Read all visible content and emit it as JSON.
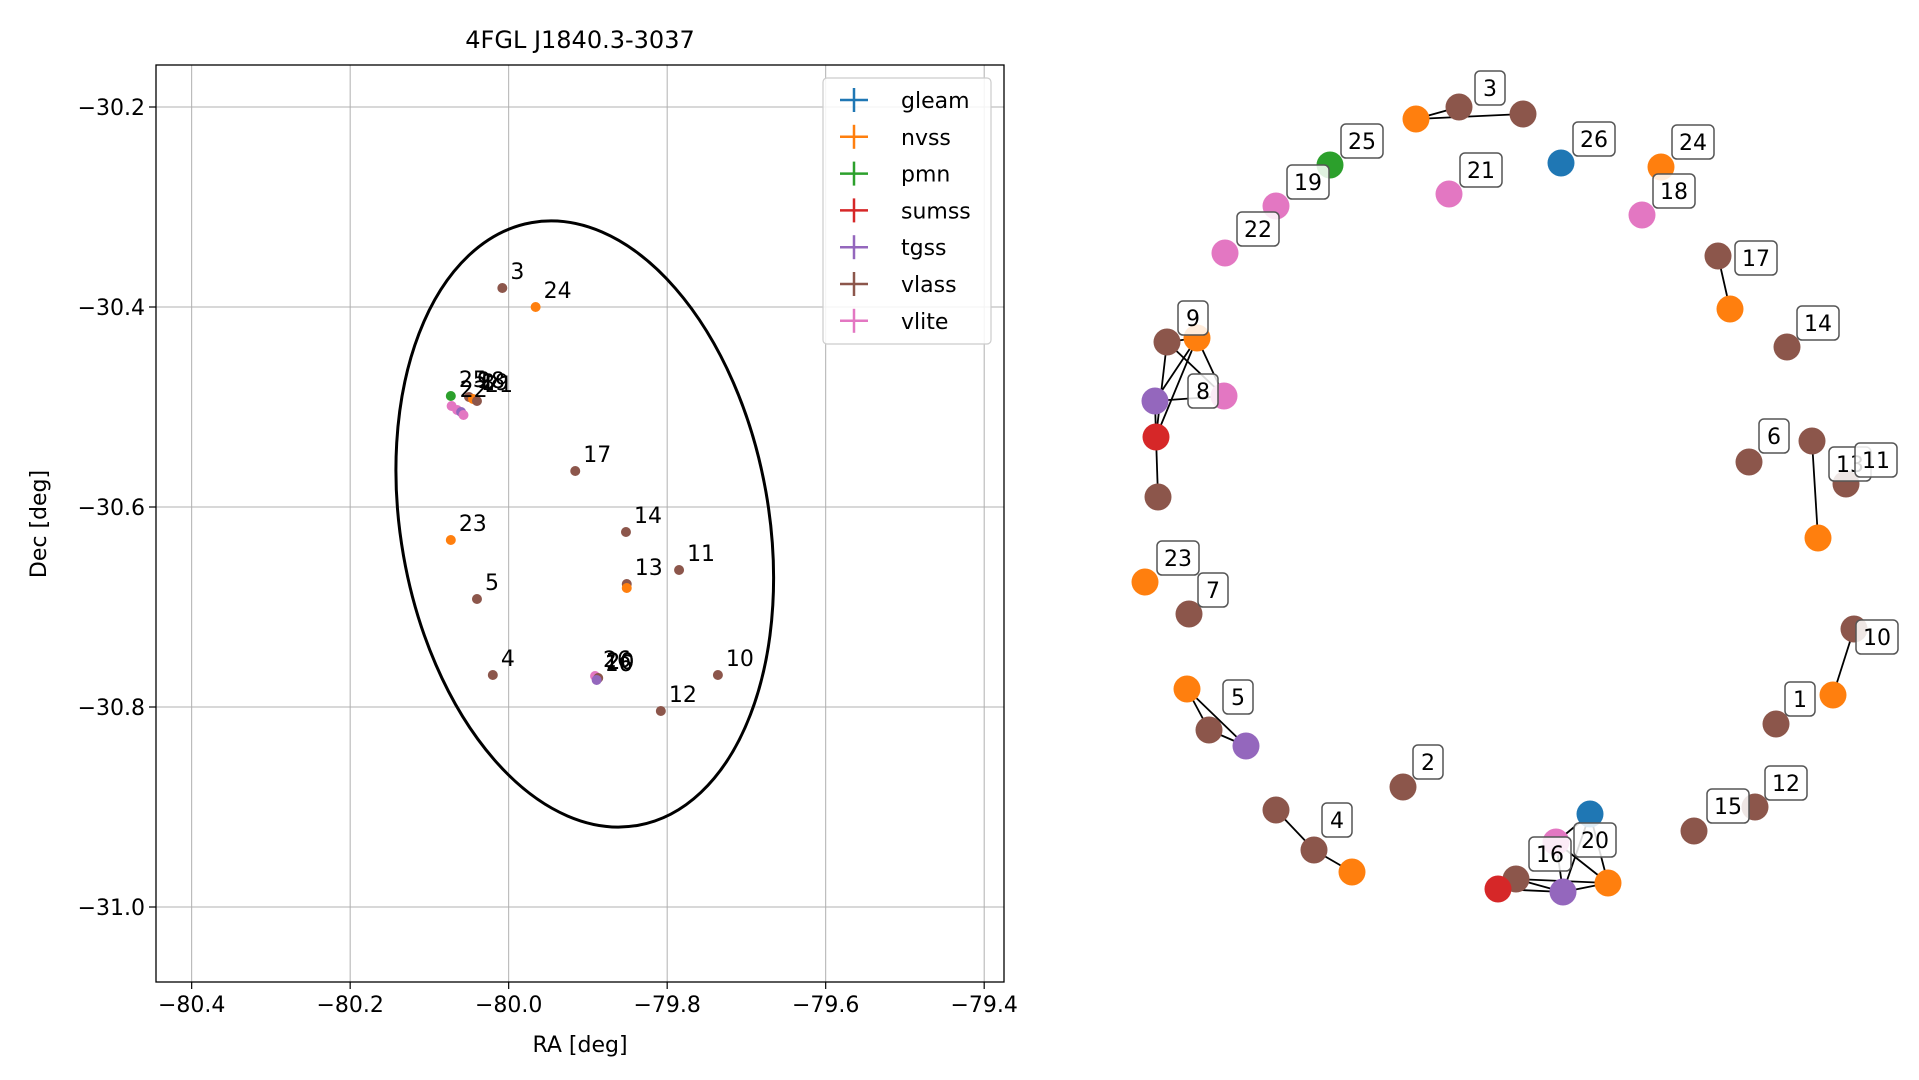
{
  "colors": {
    "gleam": "#1f77b4",
    "nvss": "#ff7f0e",
    "pmn": "#2ca02c",
    "sumss": "#d62728",
    "tgss": "#9467bd",
    "vlass": "#8c564b",
    "vlite": "#e377c2"
  },
  "chart_data": [
    {
      "type": "scatter",
      "title": "4FGL J1840.3-3037",
      "xlabel": "RA [deg]",
      "ylabel": "Dec [deg]",
      "xlim": [
        -80.445,
        -79.375
      ],
      "ylim": [
        -31.075,
        -30.158
      ],
      "x_ticks": [
        -80.4,
        -80.2,
        -80.0,
        -79.8,
        -79.6,
        -79.4
      ],
      "x_tick_labels": [
        "−80.4",
        "−80.2",
        "−80.0",
        "−79.8",
        "−79.6",
        "−79.4"
      ],
      "y_ticks": [
        -30.2,
        -30.4,
        -30.6,
        -30.8,
        -31.0
      ],
      "y_tick_labels": [
        "−30.2",
        "−30.4",
        "−30.6",
        "−30.8",
        "−31.0"
      ],
      "grid": true,
      "legend_position": "top-right",
      "legend": [
        "gleam",
        "nvss",
        "pmn",
        "sumss",
        "tgss",
        "vlass",
        "vlite"
      ],
      "ellipse": {
        "center": [
          -79.904,
          -30.617
        ],
        "semi_major_deg": 0.306,
        "semi_minor_deg": 0.184,
        "tilt_deg": 10
      },
      "points": [
        {
          "label": "3",
          "survey": "vlass",
          "ra": -80.008,
          "dec": -30.381
        },
        {
          "label": "24",
          "survey": "nvss",
          "ra": -79.966,
          "dec": -30.4
        },
        {
          "label": "25",
          "survey": "pmn",
          "ra": -80.073,
          "dec": -30.489
        },
        {
          "label": "9",
          "survey": "vlass",
          "ra": -80.05,
          "dec": -30.49
        },
        {
          "label": "8",
          "survey": "nvss",
          "ra": -80.045,
          "dec": -30.492
        },
        {
          "label": "21",
          "survey": "vlass",
          "ra": -80.04,
          "dec": -30.494
        },
        {
          "label": "22",
          "survey": "vlite",
          "ra": -80.072,
          "dec": -30.499
        },
        {
          "label": "",
          "survey": "vlite",
          "ra": -80.065,
          "dec": -30.503
        },
        {
          "label": "",
          "survey": "tgss",
          "ra": -80.06,
          "dec": -30.505
        },
        {
          "label": "",
          "survey": "vlite",
          "ra": -80.057,
          "dec": -30.508
        },
        {
          "label": "17",
          "survey": "vlass",
          "ra": -79.916,
          "dec": -30.564
        },
        {
          "label": "23",
          "survey": "nvss",
          "ra": -80.073,
          "dec": -30.633
        },
        {
          "label": "14",
          "survey": "vlass",
          "ra": -79.852,
          "dec": -30.625
        },
        {
          "label": "11",
          "survey": "vlass",
          "ra": -79.785,
          "dec": -30.663
        },
        {
          "label": "13",
          "survey": "vlass",
          "ra": -79.851,
          "dec": -30.677
        },
        {
          "label": "",
          "survey": "nvss",
          "ra": -79.851,
          "dec": -30.681
        },
        {
          "label": "5",
          "survey": "vlass",
          "ra": -80.04,
          "dec": -30.692
        },
        {
          "label": "4",
          "survey": "vlass",
          "ra": -80.02,
          "dec": -30.768
        },
        {
          "label": "10",
          "survey": "vlass",
          "ra": -79.736,
          "dec": -30.768
        },
        {
          "label": "26",
          "survey": "vlite",
          "ra": -79.891,
          "dec": -30.769
        },
        {
          "label": "20",
          "survey": "vlass",
          "ra": -79.887,
          "dec": -30.771
        },
        {
          "label": "16",
          "survey": "tgss",
          "ra": -79.889,
          "dec": -30.773
        },
        {
          "label": "12",
          "survey": "vlass",
          "ra": -79.808,
          "dec": -30.804
        }
      ],
      "overlapped_labels": [
        "18",
        "19",
        "16",
        "20"
      ]
    },
    {
      "type": "network",
      "nodes": [
        {
          "id": "3",
          "survey": "vlass",
          "labeled": true
        },
        {
          "id": "3b",
          "survey": "nvss"
        },
        {
          "id": "3c",
          "survey": "vlass"
        },
        {
          "id": "25",
          "survey": "pmn",
          "labeled": true
        },
        {
          "id": "26",
          "survey": "gleam",
          "labeled": true
        },
        {
          "id": "24",
          "survey": "nvss",
          "labeled": true
        },
        {
          "id": "21",
          "survey": "vlite",
          "labeled": true
        },
        {
          "id": "19",
          "survey": "vlite",
          "labeled": true
        },
        {
          "id": "18",
          "survey": "vlite",
          "labeled": true
        },
        {
          "id": "22",
          "survey": "vlite",
          "labeled": true
        },
        {
          "id": "17",
          "survey": "vlass",
          "labeled": true
        },
        {
          "id": "17b",
          "survey": "nvss"
        },
        {
          "id": "14",
          "survey": "vlass",
          "labeled": true
        },
        {
          "id": "9",
          "survey": "nvss",
          "labeled": true
        },
        {
          "id": "9b",
          "survey": "vlass"
        },
        {
          "id": "8",
          "survey": "vlite",
          "labeled": true
        },
        {
          "id": "8b",
          "survey": "tgss"
        },
        {
          "id": "8c",
          "survey": "sumss"
        },
        {
          "id": "8d",
          "survey": "vlass"
        },
        {
          "id": "6",
          "survey": "vlass",
          "labeled": true
        },
        {
          "id": "13",
          "survey": "vlass",
          "labeled": true
        },
        {
          "id": "13b",
          "survey": "nvss"
        },
        {
          "id": "11",
          "survey": "vlass",
          "labeled": true
        },
        {
          "id": "23",
          "survey": "nvss",
          "labeled": true
        },
        {
          "id": "7",
          "survey": "vlass",
          "labeled": true
        },
        {
          "id": "10",
          "survey": "vlass",
          "labeled": true
        },
        {
          "id": "10b",
          "survey": "nvss"
        },
        {
          "id": "1",
          "survey": "vlass",
          "labeled": true
        },
        {
          "id": "5",
          "survey": "tgss",
          "labeled": true
        },
        {
          "id": "5b",
          "survey": "nvss"
        },
        {
          "id": "5c",
          "survey": "vlass"
        },
        {
          "id": "2",
          "survey": "vlass",
          "labeled": true
        },
        {
          "id": "12",
          "survey": "vlass",
          "labeled": true
        },
        {
          "id": "15",
          "survey": "vlass",
          "labeled": true
        },
        {
          "id": "4",
          "survey": "vlass",
          "labeled": true
        },
        {
          "id": "4b",
          "survey": "vlass"
        },
        {
          "id": "4c",
          "survey": "nvss"
        },
        {
          "id": "16",
          "survey": "vlass",
          "labeled": true
        },
        {
          "id": "16b",
          "survey": "sumss"
        },
        {
          "id": "20",
          "survey": "vlite",
          "labeled": true
        },
        {
          "id": "20b",
          "survey": "gleam"
        },
        {
          "id": "20c",
          "survey": "tgss"
        },
        {
          "id": "20d",
          "survey": "nvss"
        }
      ],
      "edges": [
        [
          "3b",
          "3c"
        ],
        [
          "3b",
          "3"
        ],
        [
          "17",
          "17b"
        ],
        [
          "13",
          "13b"
        ],
        [
          "10",
          "10b"
        ],
        [
          "9",
          "9b"
        ],
        [
          "9",
          "8b"
        ],
        [
          "9",
          "8c"
        ],
        [
          "9",
          "8"
        ],
        [
          "9b",
          "8c"
        ],
        [
          "9b",
          "8"
        ],
        [
          "8b",
          "8c"
        ],
        [
          "8b",
          "8"
        ],
        [
          "8c",
          "8d"
        ],
        [
          "5b",
          "5c"
        ],
        [
          "5b",
          "5"
        ],
        [
          "5c",
          "5"
        ],
        [
          "4",
          "4b"
        ],
        [
          "4b",
          "4c"
        ],
        [
          "16",
          "16b"
        ],
        [
          "16",
          "20c"
        ],
        [
          "16b",
          "20c"
        ],
        [
          "16",
          "20d"
        ],
        [
          "20",
          "20b"
        ],
        [
          "20",
          "20c"
        ],
        [
          "20",
          "20d"
        ],
        [
          "20b",
          "20c"
        ],
        [
          "20b",
          "20d"
        ],
        [
          "20c",
          "20d"
        ]
      ]
    }
  ]
}
